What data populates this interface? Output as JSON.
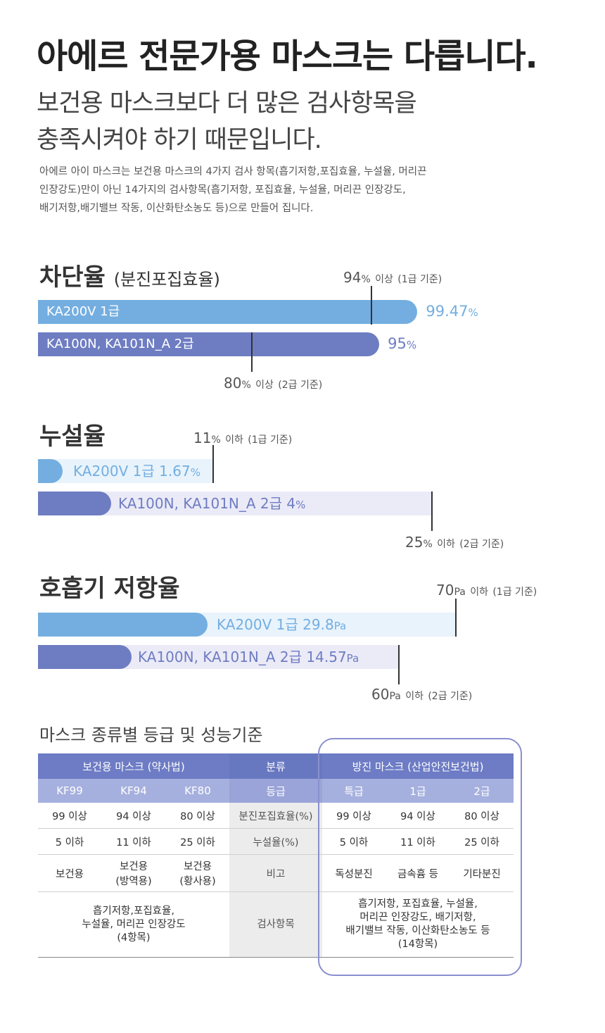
{
  "header": {
    "title": "아에르 전문가용 마스크는 다릅니다.",
    "subtitle_line1": "보건용 마스크보다 더 많은 검사항목을",
    "subtitle_line2": "충족시켜야 하기 때문입니다.",
    "desc_line1": "아에르 아이 마스크는 보건용 마스크의 4가지 검사 항목(흡기저항,포집효율, 누설율, 머리끈",
    "desc_line2": "인장강도)만이 아닌 14가지의 검사항목(흡기저항, 포집효율, 누설율, 머리끈 인장강도,",
    "desc_line3": "배기저항,배기밸브 작동, 이산화탄소농도 등)으로 만들어 집니다."
  },
  "colors": {
    "grade1": "#74aee0",
    "grade2": "#6e7dc2",
    "grade1_track": "#e8f3fc",
    "grade2_track": "#ebeaf7",
    "table_head": "#6d7cc4",
    "table_subhead": "#a6b0de",
    "outline": "#8a8fcf"
  },
  "chart_data": [
    {
      "type": "bar",
      "title": "차단율",
      "subtitle": "(분진포집효율)",
      "unit": "%",
      "series": [
        {
          "name": "KA200V 1급",
          "value": 99.47,
          "value_label": "99.47",
          "standard": 94,
          "standard_label": "94",
          "standard_text": "이상",
          "standard_grade": "(1급 기준)"
        },
        {
          "name": "KA100N, KA101N_A 2급",
          "value": 95,
          "value_label": "95",
          "standard": 80,
          "standard_label": "80",
          "standard_text": "이상",
          "standard_grade": "(2급 기준)"
        }
      ]
    },
    {
      "type": "bar",
      "title": "누설율",
      "unit": "%",
      "series": [
        {
          "name": "KA200V 1급",
          "value": 1.67,
          "value_label": "1.67",
          "standard": 11,
          "standard_label": "11",
          "standard_text": "이하",
          "standard_grade": "(1급 기준)"
        },
        {
          "name": "KA100N, KA101N_A 2급",
          "value": 4,
          "value_label": "4",
          "standard": 25,
          "standard_label": "25",
          "standard_text": "이하",
          "standard_grade": "(2급 기준)"
        }
      ]
    },
    {
      "type": "bar",
      "title": "호흡기 저항율",
      "unit": "Pa",
      "series": [
        {
          "name": "KA200V 1급",
          "value": 29.8,
          "value_label": "29.8",
          "standard": 70,
          "standard_label": "70",
          "standard_text": "이하",
          "standard_grade": "(1급 기준)"
        },
        {
          "name": "KA100N, KA101N_A 2급",
          "value": 14.57,
          "value_label": "14.57",
          "standard": 60,
          "standard_label": "60",
          "standard_text": "이하",
          "standard_grade": "(2급 기준)"
        }
      ]
    },
    {
      "type": "table",
      "title": "마스크 종류별 등급 및 성능기준",
      "group_headers": [
        "보건용 마스크 (약사법)",
        "분류",
        "방진 마스크 (산업안전보건법)"
      ],
      "columns": [
        "KF99",
        "KF94",
        "KF80",
        "등급",
        "특급",
        "1급",
        "2급"
      ],
      "rows": [
        [
          "99 이상",
          "94 이상",
          "80 이상",
          "분진포집효율(%)",
          "99 이상",
          "94 이상",
          "80 이상"
        ],
        [
          "5 이하",
          "11 이하",
          "25 이하",
          "누설율(%)",
          "5 이하",
          "11 이하",
          "25 이하"
        ],
        [
          "보건용",
          "보건용\n(방역용)",
          "보건용\n(황사용)",
          "비고",
          "독성분진",
          "금속흄 등",
          "기타분진"
        ]
      ],
      "test_items": {
        "left": "흡기저항,포집효율,\n누설율, 머리끈 인장강도\n(4항목)",
        "label": "검사항목",
        "right": "흡기저항, 포집효율, 누설율,\n머리끈 인장강도, 배기저항,\n배기밸브 작동, 이산화탄소농도 등\n(14항목)"
      }
    }
  ]
}
